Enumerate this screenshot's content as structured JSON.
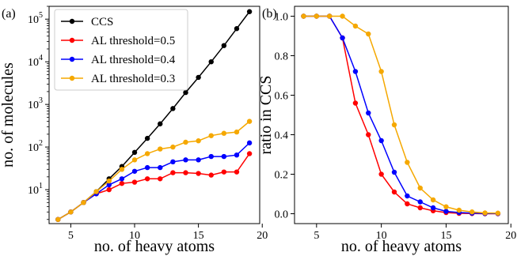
{
  "chart_data": [
    {
      "panel_label": "(a)",
      "type": "line",
      "xlabel": "no. of heavy atoms",
      "ylabel": "no. of molecules",
      "xlim": [
        3.3,
        19.8
      ],
      "yscale": "log",
      "ylim": [
        1.6,
        200000
      ],
      "x_ticks": [
        5,
        10,
        15,
        20
      ],
      "y_ticks": [
        10,
        100,
        1000,
        10000,
        100000
      ],
      "y_tick_labels": [
        {
          "base": "10",
          "exp": "1"
        },
        {
          "base": "10",
          "exp": "2"
        },
        {
          "base": "10",
          "exp": "3"
        },
        {
          "base": "10",
          "exp": "4"
        },
        {
          "base": "10",
          "exp": "5"
        }
      ],
      "legend_position": "top-left",
      "grid": false,
      "x": [
        4,
        5,
        6,
        7,
        8,
        9,
        10,
        11,
        12,
        13,
        14,
        15,
        16,
        17,
        18,
        19
      ],
      "series": [
        {
          "name": "CCS",
          "color": "#000000",
          "values": [
            2,
            3,
            5,
            9,
            18,
            35,
            75,
            160,
            350,
            800,
            1900,
            4300,
            10000,
            24000,
            60000,
            150000
          ]
        },
        {
          "name": "AL threshold=0.5",
          "color": "#ff0000",
          "values": [
            2,
            3,
            5,
            8,
            10,
            14,
            15,
            18,
            18,
            25,
            25,
            24,
            22,
            26,
            26,
            70
          ]
        },
        {
          "name": "AL threshold=0.4",
          "color": "#0000ff",
          "values": [
            2,
            3,
            5,
            8,
            13,
            18,
            27,
            33,
            33,
            45,
            50,
            50,
            60,
            60,
            65,
            125
          ]
        },
        {
          "name": "AL threshold=0.3",
          "color": "#f5a800",
          "values": [
            2,
            3,
            5,
            9,
            16,
            30,
            50,
            70,
            90,
            100,
            130,
            140,
            185,
            210,
            225,
            400
          ]
        }
      ]
    },
    {
      "panel_label": "(b)",
      "type": "line",
      "xlabel": "no. of heavy atoms",
      "ylabel": "ratio in CCS",
      "xlim": [
        3.3,
        19.8
      ],
      "ylim": [
        -0.05,
        1.05
      ],
      "x_ticks": [
        5,
        10,
        15,
        20
      ],
      "y_ticks": [
        0.0,
        0.2,
        0.4,
        0.6,
        0.8,
        1.0
      ],
      "y_tick_labels": [
        "0.0",
        "0.2",
        "0.4",
        "0.6",
        "0.8",
        "1.0"
      ],
      "grid": false,
      "x": [
        4,
        5,
        6,
        7,
        8,
        9,
        10,
        11,
        12,
        13,
        14,
        15,
        16,
        17,
        18,
        19
      ],
      "series": [
        {
          "color": "#ff0000",
          "values": [
            1.0,
            1.0,
            1.0,
            0.89,
            0.56,
            0.4,
            0.2,
            0.11,
            0.05,
            0.03,
            0.015,
            0.006,
            0.002,
            0.001,
            0.0,
            0.0
          ]
        },
        {
          "color": "#0000ff",
          "values": [
            1.0,
            1.0,
            1.0,
            0.89,
            0.72,
            0.51,
            0.37,
            0.21,
            0.09,
            0.06,
            0.03,
            0.012,
            0.006,
            0.003,
            0.001,
            0.001
          ]
        },
        {
          "color": "#f5a800",
          "values": [
            1.0,
            1.0,
            1.0,
            1.0,
            0.95,
            0.91,
            0.72,
            0.45,
            0.26,
            0.13,
            0.07,
            0.035,
            0.018,
            0.009,
            0.004,
            0.003
          ]
        }
      ]
    }
  ]
}
